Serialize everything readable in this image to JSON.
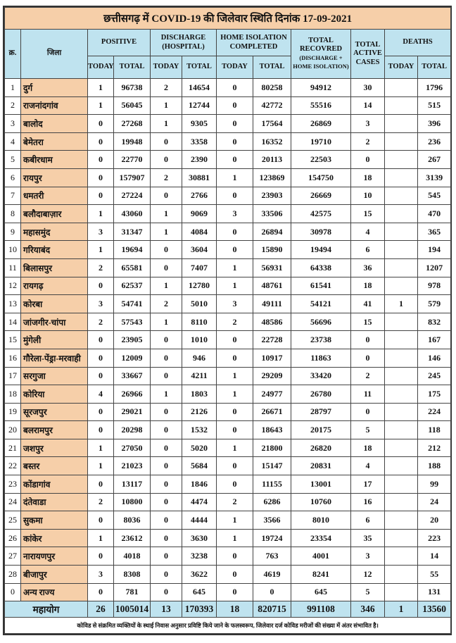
{
  "title": "छत्तीसगढ़ में COVID-19 की जिलेवार स्थिति दिनांक 17-09-2021",
  "headers": {
    "sr": "क्र.",
    "district": "जिला",
    "positive": "POSITIVE",
    "discharge": "DISCHARGE (HOSPITAL)",
    "home_isolation": "HOME ISOLATION COMPLETED",
    "total_recovered": "TOTAL RECOVRED",
    "total_recovered_sub": "(DISCHARGE + HOME ISOLATION)",
    "total_active": "TOTAL ACTIVE CASES",
    "deaths": "DEATHS",
    "today": "TODAY",
    "total": "TOTAL"
  },
  "rows": [
    {
      "sr": "1",
      "district": "दुर्ग",
      "pos_today": "1",
      "pos_total": "96738",
      "dis_today": "2",
      "dis_total": "14654",
      "hi_today": "0",
      "hi_total": "80258",
      "recovered": "94912",
      "active": "30",
      "death_today": "",
      "death_total": "1796"
    },
    {
      "sr": "2",
      "district": "राजनांदगांव",
      "pos_today": "1",
      "pos_total": "56045",
      "dis_today": "1",
      "dis_total": "12744",
      "hi_today": "0",
      "hi_total": "42772",
      "recovered": "55516",
      "active": "14",
      "death_today": "",
      "death_total": "515"
    },
    {
      "sr": "3",
      "district": "बालोद",
      "pos_today": "0",
      "pos_total": "27268",
      "dis_today": "1",
      "dis_total": "9305",
      "hi_today": "0",
      "hi_total": "17564",
      "recovered": "26869",
      "active": "3",
      "death_today": "",
      "death_total": "396"
    },
    {
      "sr": "4",
      "district": "बेमेतरा",
      "pos_today": "0",
      "pos_total": "19948",
      "dis_today": "0",
      "dis_total": "3358",
      "hi_today": "0",
      "hi_total": "16352",
      "recovered": "19710",
      "active": "2",
      "death_today": "",
      "death_total": "236"
    },
    {
      "sr": "5",
      "district": "कबीरधाम",
      "pos_today": "0",
      "pos_total": "22770",
      "dis_today": "0",
      "dis_total": "2390",
      "hi_today": "0",
      "hi_total": "20113",
      "recovered": "22503",
      "active": "0",
      "death_today": "",
      "death_total": "267"
    },
    {
      "sr": "6",
      "district": "रायपुर",
      "pos_today": "0",
      "pos_total": "157907",
      "dis_today": "2",
      "dis_total": "30881",
      "hi_today": "1",
      "hi_total": "123869",
      "recovered": "154750",
      "active": "18",
      "death_today": "",
      "death_total": "3139"
    },
    {
      "sr": "7",
      "district": "धमतरी",
      "pos_today": "0",
      "pos_total": "27224",
      "dis_today": "0",
      "dis_total": "2766",
      "hi_today": "0",
      "hi_total": "23903",
      "recovered": "26669",
      "active": "10",
      "death_today": "",
      "death_total": "545"
    },
    {
      "sr": "8",
      "district": "बलौदाबाज़ार",
      "pos_today": "1",
      "pos_total": "43060",
      "dis_today": "1",
      "dis_total": "9069",
      "hi_today": "3",
      "hi_total": "33506",
      "recovered": "42575",
      "active": "15",
      "death_today": "",
      "death_total": "470"
    },
    {
      "sr": "9",
      "district": "महासमुंद",
      "pos_today": "3",
      "pos_total": "31347",
      "dis_today": "1",
      "dis_total": "4084",
      "hi_today": "0",
      "hi_total": "26894",
      "recovered": "30978",
      "active": "4",
      "death_today": "",
      "death_total": "365"
    },
    {
      "sr": "10",
      "district": "गरियाबंद",
      "pos_today": "1",
      "pos_total": "19694",
      "dis_today": "0",
      "dis_total": "3604",
      "hi_today": "0",
      "hi_total": "15890",
      "recovered": "19494",
      "active": "6",
      "death_today": "",
      "death_total": "194"
    },
    {
      "sr": "11",
      "district": "बिलासपुर",
      "pos_today": "2",
      "pos_total": "65581",
      "dis_today": "0",
      "dis_total": "7407",
      "hi_today": "1",
      "hi_total": "56931",
      "recovered": "64338",
      "active": "36",
      "death_today": "",
      "death_total": "1207"
    },
    {
      "sr": "12",
      "district": "रायगढ़",
      "pos_today": "0",
      "pos_total": "62537",
      "dis_today": "1",
      "dis_total": "12780",
      "hi_today": "1",
      "hi_total": "48761",
      "recovered": "61541",
      "active": "18",
      "death_today": "",
      "death_total": "978"
    },
    {
      "sr": "13",
      "district": "कोरबा",
      "pos_today": "3",
      "pos_total": "54741",
      "dis_today": "2",
      "dis_total": "5010",
      "hi_today": "3",
      "hi_total": "49111",
      "recovered": "54121",
      "active": "41",
      "death_today": "1",
      "death_total": "579"
    },
    {
      "sr": "14",
      "district": "जांजगीर-चांपा",
      "pos_today": "2",
      "pos_total": "57543",
      "dis_today": "1",
      "dis_total": "8110",
      "hi_today": "2",
      "hi_total": "48586",
      "recovered": "56696",
      "active": "15",
      "death_today": "",
      "death_total": "832"
    },
    {
      "sr": "15",
      "district": "मुंगेली",
      "pos_today": "0",
      "pos_total": "23905",
      "dis_today": "0",
      "dis_total": "1010",
      "hi_today": "0",
      "hi_total": "22728",
      "recovered": "23738",
      "active": "0",
      "death_today": "",
      "death_total": "167"
    },
    {
      "sr": "16",
      "district": "गौरेला-पेंड्रा-मरवाही",
      "pos_today": "0",
      "pos_total": "12009",
      "dis_today": "0",
      "dis_total": "946",
      "hi_today": "0",
      "hi_total": "10917",
      "recovered": "11863",
      "active": "0",
      "death_today": "",
      "death_total": "146"
    },
    {
      "sr": "17",
      "district": "सरगुजा",
      "pos_today": "0",
      "pos_total": "33667",
      "dis_today": "0",
      "dis_total": "4211",
      "hi_today": "1",
      "hi_total": "29209",
      "recovered": "33420",
      "active": "2",
      "death_today": "",
      "death_total": "245"
    },
    {
      "sr": "18",
      "district": "कोरिया",
      "pos_today": "4",
      "pos_total": "26966",
      "dis_today": "1",
      "dis_total": "1803",
      "hi_today": "1",
      "hi_total": "24977",
      "recovered": "26780",
      "active": "11",
      "death_today": "",
      "death_total": "175"
    },
    {
      "sr": "19",
      "district": "सूरजपुर",
      "pos_today": "0",
      "pos_total": "29021",
      "dis_today": "0",
      "dis_total": "2126",
      "hi_today": "0",
      "hi_total": "26671",
      "recovered": "28797",
      "active": "0",
      "death_today": "",
      "death_total": "224"
    },
    {
      "sr": "20",
      "district": "बलरामपुर",
      "pos_today": "0",
      "pos_total": "20298",
      "dis_today": "0",
      "dis_total": "1532",
      "hi_today": "0",
      "hi_total": "18643",
      "recovered": "20175",
      "active": "5",
      "death_today": "",
      "death_total": "118"
    },
    {
      "sr": "21",
      "district": "जशपुर",
      "pos_today": "1",
      "pos_total": "27050",
      "dis_today": "0",
      "dis_total": "5020",
      "hi_today": "1",
      "hi_total": "21800",
      "recovered": "26820",
      "active": "18",
      "death_today": "",
      "death_total": "212"
    },
    {
      "sr": "22",
      "district": "बस्तर",
      "pos_today": "1",
      "pos_total": "21023",
      "dis_today": "0",
      "dis_total": "5684",
      "hi_today": "0",
      "hi_total": "15147",
      "recovered": "20831",
      "active": "4",
      "death_today": "",
      "death_total": "188"
    },
    {
      "sr": "23",
      "district": "कोंडागांव",
      "pos_today": "0",
      "pos_total": "13117",
      "dis_today": "0",
      "dis_total": "1846",
      "hi_today": "0",
      "hi_total": "11155",
      "recovered": "13001",
      "active": "17",
      "death_today": "",
      "death_total": "99"
    },
    {
      "sr": "24",
      "district": "दंतेवाडा",
      "pos_today": "2",
      "pos_total": "10800",
      "dis_today": "0",
      "dis_total": "4474",
      "hi_today": "2",
      "hi_total": "6286",
      "recovered": "10760",
      "active": "16",
      "death_today": "",
      "death_total": "24"
    },
    {
      "sr": "25",
      "district": "सुकमा",
      "pos_today": "0",
      "pos_total": "8036",
      "dis_today": "0",
      "dis_total": "4444",
      "hi_today": "1",
      "hi_total": "3566",
      "recovered": "8010",
      "active": "6",
      "death_today": "",
      "death_total": "20"
    },
    {
      "sr": "26",
      "district": "कांकेर",
      "pos_today": "1",
      "pos_total": "23612",
      "dis_today": "0",
      "dis_total": "3630",
      "hi_today": "1",
      "hi_total": "19724",
      "recovered": "23354",
      "active": "35",
      "death_today": "",
      "death_total": "223"
    },
    {
      "sr": "27",
      "district": "नारायणपुर",
      "pos_today": "0",
      "pos_total": "4018",
      "dis_today": "0",
      "dis_total": "3238",
      "hi_today": "0",
      "hi_total": "763",
      "recovered": "4001",
      "active": "3",
      "death_today": "",
      "death_total": "14"
    },
    {
      "sr": "28",
      "district": "बीजापुर",
      "pos_today": "3",
      "pos_total": "8308",
      "dis_today": "0",
      "dis_total": "3622",
      "hi_today": "0",
      "hi_total": "4619",
      "recovered": "8241",
      "active": "12",
      "death_today": "",
      "death_total": "55"
    },
    {
      "sr": "0",
      "district": "अन्य राज्य",
      "pos_today": "0",
      "pos_total": "781",
      "dis_today": "0",
      "dis_total": "645",
      "hi_today": "0",
      "hi_total": "0",
      "recovered": "645",
      "active": "5",
      "death_today": "",
      "death_total": "131"
    }
  ],
  "total": {
    "label": "महायोग",
    "pos_today": "26",
    "pos_total": "1005014",
    "dis_today": "13",
    "dis_total": "170393",
    "hi_today": "18",
    "hi_total": "820715",
    "recovered": "991108",
    "active": "346",
    "death_today": "1",
    "death_total": "13560"
  },
  "footnote": "कोविड से संक्रमित व्यक्तियों के स्थाई निवास अनुसार प्रविष्टि किये जाने के फलस्वरूप, जिलेवार दर्ज कोविड मरीजों की संख्या में अंतर संभावित है।",
  "colors": {
    "title_bg": "#f6cfa9",
    "header_bg": "#bfe3ef",
    "district_bg": "#f6cfa9"
  }
}
